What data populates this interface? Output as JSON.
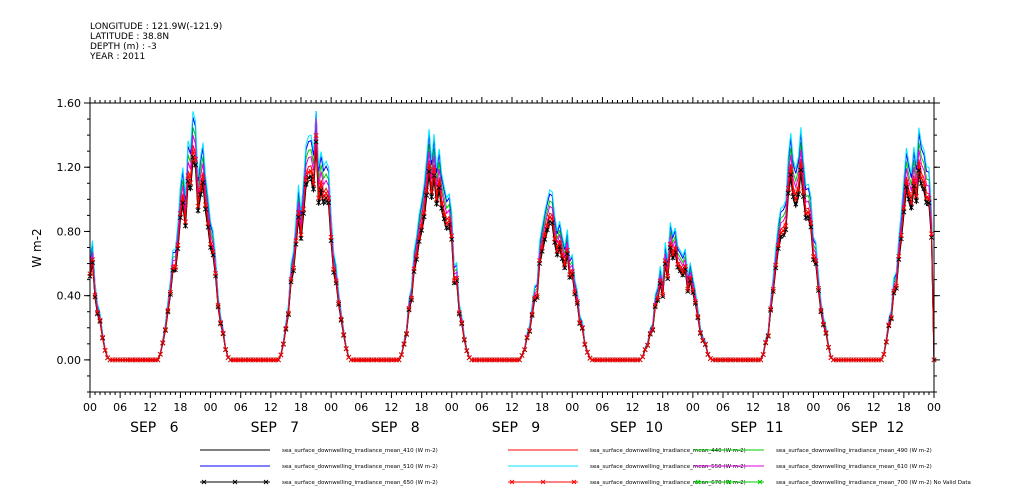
{
  "header": {
    "longitude": "LONGITUDE : 121.9W(-121.9)",
    "latitude": "LATITUDE : 38.8N",
    "depth": "DEPTH (m) : -3",
    "year": "YEAR : 2011"
  },
  "chart_data": {
    "type": "line",
    "title": "",
    "xlabel": "",
    "ylabel": "W m-2",
    "ylim": [
      -0.2,
      1.6
    ],
    "yticks": [
      0.0,
      0.4,
      0.8,
      1.2,
      1.6
    ],
    "ytick_labels": [
      "0.00",
      "0.40",
      "0.80",
      "1.20",
      "1.60"
    ],
    "x_range_hours": [
      0,
      168
    ],
    "xtick_labels": [
      "00",
      "06",
      "12",
      "18",
      "00",
      "06",
      "12",
      "18",
      "00",
      "06",
      "12",
      "18",
      "00",
      "06",
      "12",
      "18",
      "00",
      "06",
      "12",
      "18",
      "00",
      "06",
      "12",
      "18",
      "00",
      "06",
      "12",
      "18",
      "00"
    ],
    "date_labels": [
      "SEP   6",
      "SEP   7",
      "SEP   8",
      "SEP   9",
      "SEP  10",
      "SEP  11",
      "SEP  12"
    ],
    "daily_peaks_410": [
      1.08,
      1.17,
      1.05,
      0.78,
      0.62,
      1.05,
      1.1
    ],
    "series": [
      {
        "name": "sea_surface_downwelling_irradiance_mean_410 (W m-2)",
        "color": "#000000",
        "marker": "none",
        "scale": 1.0
      },
      {
        "name": "sea_surface_downwelling_irradiance_mean_440 (W m-2)",
        "color": "#ff0000",
        "marker": "none",
        "scale": 1.08
      },
      {
        "name": "sea_surface_downwelling_irradiance_mean_490 (W m-2)",
        "color": "#00cc00",
        "marker": "none",
        "scale": 1.17
      },
      {
        "name": "sea_surface_downwelling_irradiance_mean_510 (W m-2)",
        "color": "#0000ff",
        "marker": "none",
        "scale": 1.22
      },
      {
        "name": "sea_surface_downwelling_irradiance_mean_550 (W m-2)",
        "color": "#00e5ff",
        "marker": "none",
        "scale": 1.25
      },
      {
        "name": "sea_surface_downwelling_irradiance_mean_610 (W m-2)",
        "color": "#e000e0",
        "marker": "none",
        "scale": 1.13
      },
      {
        "name": "sea_surface_downwelling_irradiance_mean_650 (W m-2)",
        "color": "#000000",
        "marker": "x",
        "scale": 1.02
      },
      {
        "name": "sea_surface_downwelling_irradiance_mean_670 (W m-2)",
        "color": "#ff0000",
        "marker": "x",
        "scale": 1.05
      },
      {
        "name": "sea_surface_downwelling_irradiance_mean_700 (W m-2) No Valid Data",
        "color": "#00cc00",
        "marker": "x",
        "scale": 0
      }
    ]
  }
}
